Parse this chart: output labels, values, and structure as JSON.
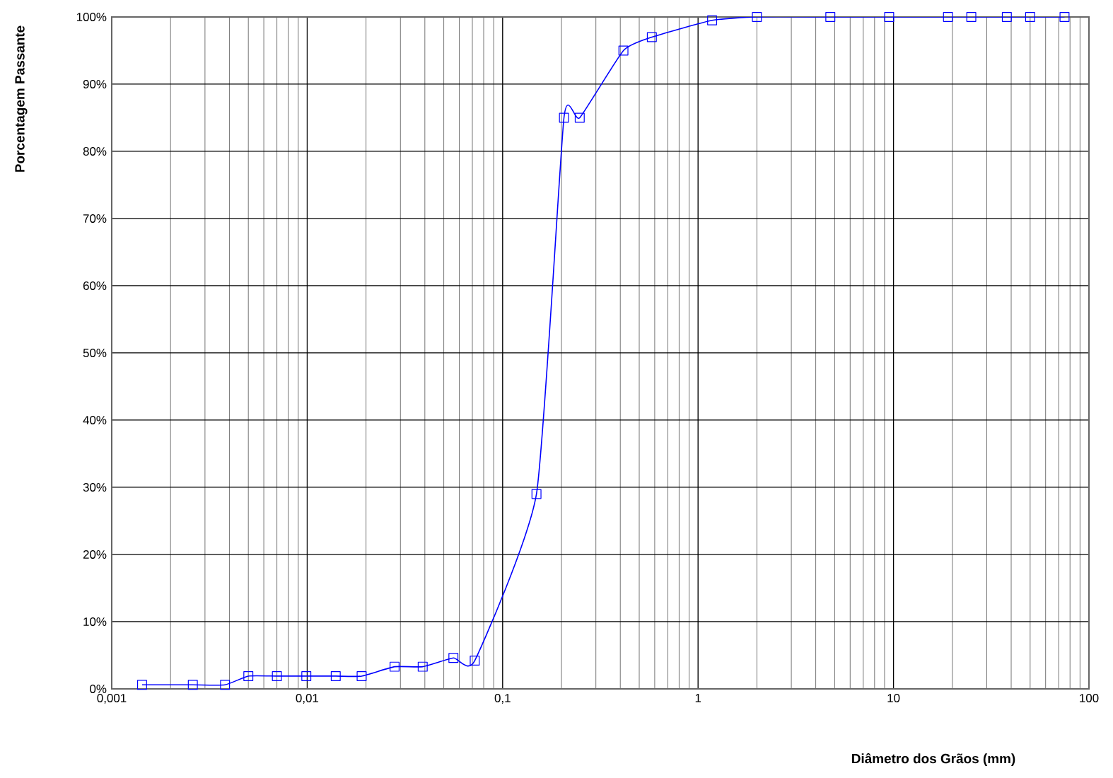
{
  "chart_data": {
    "type": "line",
    "xlabel": "Diâmetro dos Grãos (mm)",
    "ylabel": "Porcentagem Passante",
    "x": [
      0.00143,
      0.0026,
      0.0038,
      0.005,
      0.007,
      0.0099,
      0.014,
      0.019,
      0.028,
      0.039,
      0.056,
      0.072,
      0.149,
      0.206,
      0.248,
      0.415,
      0.58,
      1.18,
      2.0,
      4.75,
      9.5,
      19,
      25,
      38,
      50,
      75
    ],
    "series": [
      {
        "color": "#0000ff",
        "values": [
          0.6,
          0.6,
          0.6,
          1.9,
          1.9,
          1.9,
          1.9,
          1.9,
          3.3,
          3.3,
          4.6,
          4.2,
          29,
          85,
          85,
          95,
          97,
          99.5,
          100,
          100,
          100,
          100,
          100,
          100,
          100,
          100
        ]
      }
    ],
    "log": "x",
    "xlim": [
      0.001,
      100
    ],
    "xticks": [
      {
        "value": 0.001,
        "label": "0,001"
      },
      {
        "value": 0.01,
        "label": "0,01"
      },
      {
        "value": 0.1,
        "label": "0,1"
      },
      1,
      10,
      100
    ],
    "ylim": [
      0,
      100
    ],
    "yticks": [
      {
        "value": 0,
        "label": "0%"
      },
      {
        "value": 10,
        "label": "10%"
      },
      {
        "value": 20,
        "label": "20%"
      },
      {
        "value": 30,
        "label": "30%"
      },
      {
        "value": 40,
        "label": "40%"
      },
      {
        "value": 50,
        "label": "50%"
      },
      {
        "value": 60,
        "label": "60%"
      },
      {
        "value": 70,
        "label": "70%"
      },
      {
        "value": 80,
        "label": "80%"
      },
      {
        "value": 90,
        "label": "90%"
      },
      {
        "value": 100,
        "label": "100%"
      }
    ],
    "grid": true,
    "marker": "square",
    "line_style": "solid"
  }
}
